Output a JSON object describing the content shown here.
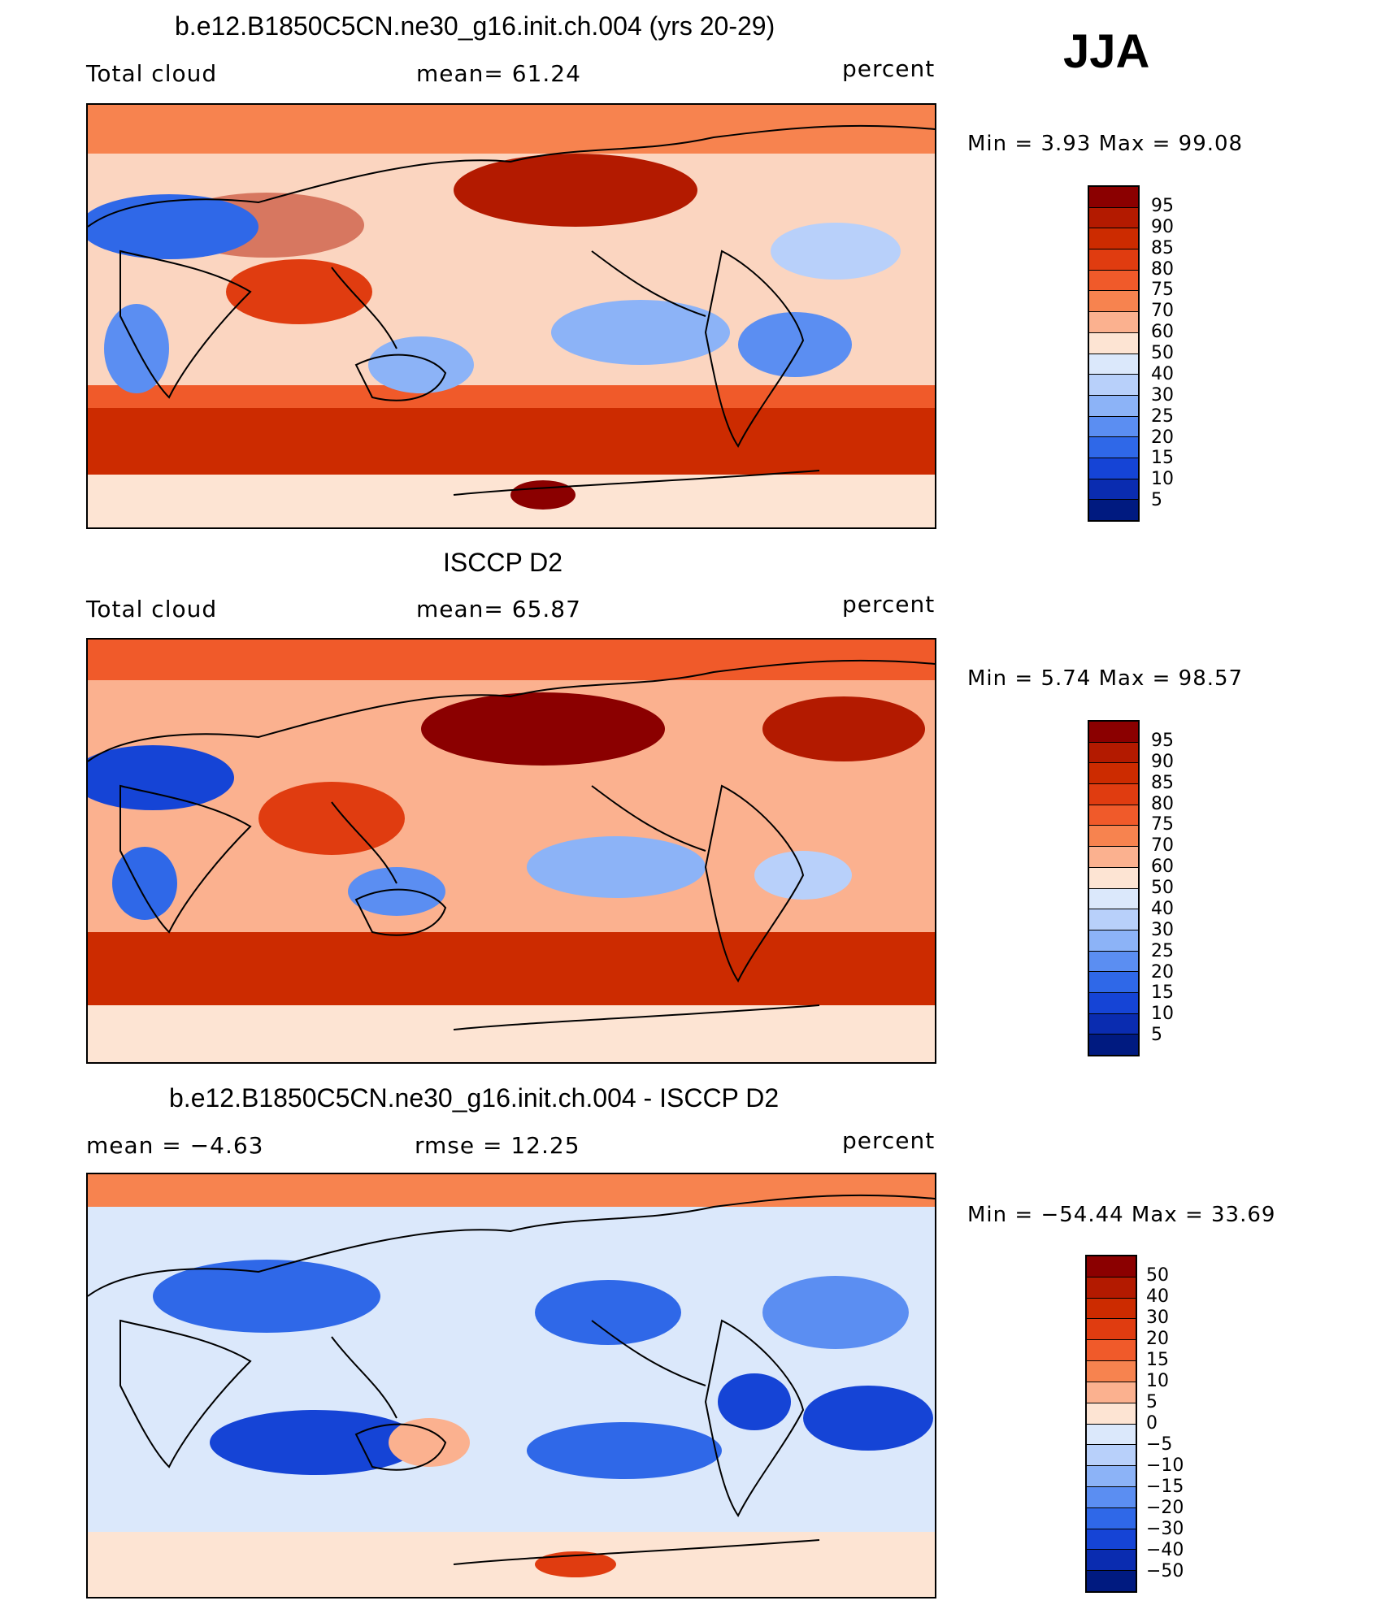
{
  "season": "JJA",
  "panels": [
    {
      "title": "b.e12.B1850C5CN.ne30_g16.init.ch.004 (yrs 20-29)",
      "left_text": "Total cloud",
      "mid_text": "mean=   61.24",
      "right_text": "percent",
      "minmax": "Min =    3.93 Max =   99.08",
      "colorbar_labels": [
        "95",
        "90",
        "85",
        "80",
        "75",
        "70",
        "60",
        "50",
        "40",
        "30",
        "25",
        "20",
        "15",
        "10",
        "5"
      ],
      "colorbar_colors": [
        "#8b0000",
        "#b31a00",
        "#cc2b00",
        "#e03c10",
        "#f05a2a",
        "#f7834f",
        "#fbb18f",
        "#fde4d3",
        "#dbe8fb",
        "#b8d0fa",
        "#8cb3f7",
        "#5b8ef2",
        "#2f68e8",
        "#1544d6",
        "#0a2cb0",
        "#001a80"
      ],
      "colorbar_levels": [
        95,
        90,
        85,
        80,
        75,
        70,
        60,
        50,
        40,
        30,
        25,
        20,
        15,
        10,
        5
      ]
    },
    {
      "title": "ISCCP D2",
      "left_text": "Total cloud",
      "mid_text": "mean=   65.87",
      "right_text": "percent",
      "minmax": "Min =    5.74 Max =   98.57",
      "colorbar_labels": [
        "95",
        "90",
        "85",
        "80",
        "75",
        "70",
        "60",
        "50",
        "40",
        "30",
        "25",
        "20",
        "15",
        "10",
        "5"
      ],
      "colorbar_colors": [
        "#8b0000",
        "#b31a00",
        "#cc2b00",
        "#e03c10",
        "#f05a2a",
        "#f7834f",
        "#fbb18f",
        "#fde4d3",
        "#dbe8fb",
        "#b8d0fa",
        "#8cb3f7",
        "#5b8ef2",
        "#2f68e8",
        "#1544d6",
        "#0a2cb0",
        "#001a80"
      ],
      "colorbar_levels": [
        95,
        90,
        85,
        80,
        75,
        70,
        60,
        50,
        40,
        30,
        25,
        20,
        15,
        10,
        5
      ]
    },
    {
      "title": "b.e12.B1850C5CN.ne30_g16.init.ch.004 - ISCCP D2",
      "left_text": "mean =   −4.63",
      "mid_text": "rmse =   12.25",
      "right_text": "percent",
      "minmax": "Min = −54.44 Max =   33.69",
      "colorbar_labels": [
        "50",
        "40",
        "30",
        "20",
        "15",
        "10",
        "5",
        "0",
        "−5",
        "−10",
        "−15",
        "−20",
        "−30",
        "−40",
        "−50"
      ],
      "colorbar_colors": [
        "#8b0000",
        "#b31a00",
        "#cc2b00",
        "#e03c10",
        "#f05a2a",
        "#f7834f",
        "#fbb18f",
        "#fde4d3",
        "#dbe8fb",
        "#b8d0fa",
        "#8cb3f7",
        "#5b8ef2",
        "#2f68e8",
        "#1544d6",
        "#0a2cb0",
        "#001a80"
      ],
      "colorbar_levels": [
        50,
        40,
        30,
        20,
        15,
        10,
        5,
        0,
        -5,
        -10,
        -15,
        -20,
        -30,
        -40,
        -50
      ]
    }
  ],
  "chart_data": [
    {
      "type": "heatmap",
      "title": "b.e12.B1850C5CN.ne30_g16.init.ch.004 (yrs 20-29)",
      "variable": "Total cloud",
      "units": "percent",
      "mean": 61.24,
      "min": 3.93,
      "max": 99.08,
      "contour_levels": [
        5,
        10,
        15,
        20,
        25,
        30,
        40,
        50,
        60,
        70,
        75,
        80,
        85,
        90,
        95
      ]
    },
    {
      "type": "heatmap",
      "title": "ISCCP D2",
      "variable": "Total cloud",
      "units": "percent",
      "mean": 65.87,
      "min": 5.74,
      "max": 98.57,
      "contour_levels": [
        5,
        10,
        15,
        20,
        25,
        30,
        40,
        50,
        60,
        70,
        75,
        80,
        85,
        90,
        95
      ]
    },
    {
      "type": "heatmap",
      "title": "b.e12.B1850C5CN.ne30_g16.init.ch.004 - ISCCP D2",
      "units": "percent",
      "mean": -4.63,
      "rmse": 12.25,
      "min": -54.44,
      "max": 33.69,
      "contour_levels": [
        -50,
        -40,
        -30,
        -20,
        -15,
        -10,
        -5,
        0,
        5,
        10,
        15,
        20,
        30,
        40,
        50
      ]
    }
  ]
}
